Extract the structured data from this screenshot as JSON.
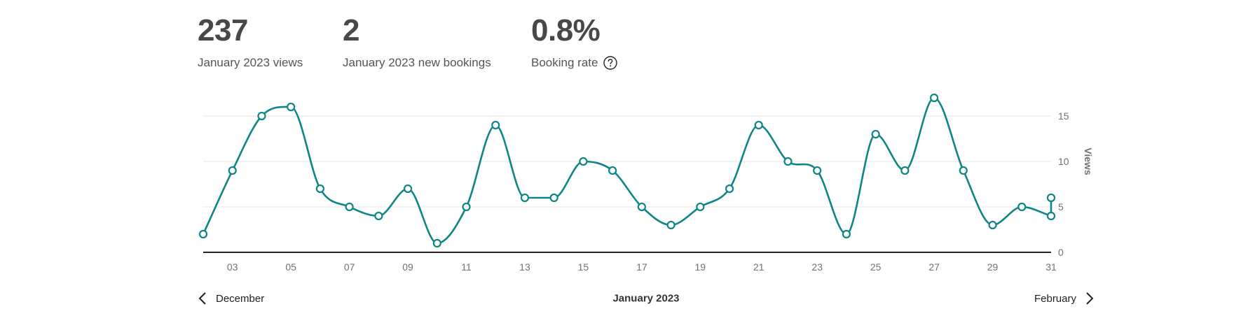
{
  "stats": {
    "views": {
      "value": "237",
      "label": "January 2023 views"
    },
    "bookings": {
      "value": "2",
      "label": "January 2023 new bookings"
    },
    "rate": {
      "value": "0.8%",
      "label": "Booking rate"
    }
  },
  "navigation": {
    "prev_label": "December",
    "current_label": "January 2023",
    "next_label": "February"
  },
  "icons": {
    "help": "question-circle-icon",
    "prev": "chevron-left-icon",
    "next": "chevron-right-icon"
  },
  "colors": {
    "line": "#0f8585",
    "grid": "#e4e4e4",
    "baseline": "#222222"
  },
  "chart_data": {
    "type": "line",
    "x": [
      2,
      3,
      4,
      5,
      6,
      7,
      8,
      9,
      10,
      11,
      12,
      13,
      14,
      15,
      16,
      17,
      18,
      19,
      20,
      21,
      22,
      23,
      24,
      25,
      26,
      27,
      28,
      29,
      30,
      31
    ],
    "series": [
      {
        "values": [
          2,
          9,
          15,
          16,
          7,
          5,
          4,
          7,
          1,
          5,
          14,
          6,
          6,
          10,
          9,
          5,
          3,
          5,
          7,
          14,
          10,
          9,
          2,
          13,
          9,
          17,
          9,
          3,
          5,
          4
        ]
      }
    ],
    "extra_points": [
      {
        "x": 31,
        "y": 6
      }
    ],
    "x_tick_labels": [
      "03",
      "05",
      "07",
      "09",
      "11",
      "13",
      "15",
      "17",
      "19",
      "21",
      "23",
      "25",
      "27",
      "29",
      "31"
    ],
    "x_tick_values": [
      3,
      5,
      7,
      9,
      11,
      13,
      15,
      17,
      19,
      21,
      23,
      25,
      27,
      29,
      31
    ],
    "y_ticks": [
      0,
      5,
      10,
      15
    ],
    "ylabel": "Views",
    "xlim": [
      2,
      31
    ],
    "ylim": [
      0,
      17
    ],
    "grid": true
  }
}
